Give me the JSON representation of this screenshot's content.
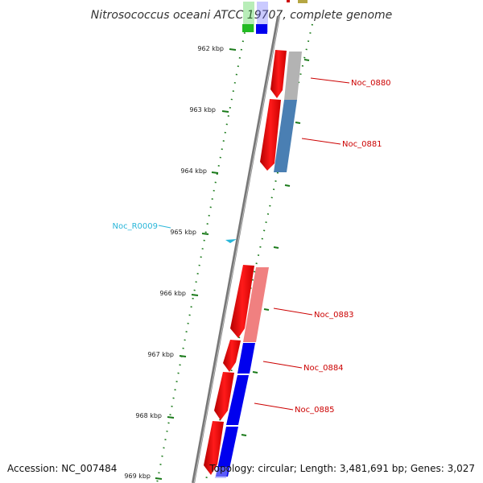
{
  "title": "Nitrosococcus oceani ATCC 19707, complete genome",
  "footer": {
    "accession": "Accession: NC_007484",
    "topology": "Topology: circular; Length: 3,481,691 bp; Genes: 3,027"
  },
  "ticks": [
    {
      "label": "962 kbp"
    },
    {
      "label": "963 kbp"
    },
    {
      "label": "964 kbp"
    },
    {
      "label": "965 kbp"
    },
    {
      "label": "966 kbp"
    },
    {
      "label": "967 kbp"
    },
    {
      "label": "968 kbp"
    },
    {
      "label": "969 kbp"
    }
  ],
  "genes": [
    {
      "label": "Noc_0880",
      "color": "#cc0000"
    },
    {
      "label": "Noc_0881",
      "color": "#cc0000"
    },
    {
      "label": "Noc_0883",
      "color": "#cc0000"
    },
    {
      "label": "Noc_0884",
      "color": "#cc0000"
    },
    {
      "label": "Noc_0885",
      "color": "#cc0000"
    },
    {
      "label": "Noc_R0009",
      "color": "#29b6d9"
    }
  ],
  "colors": {
    "backbone": "#808080",
    "tick": "#1a7a1a",
    "cds": "#ff0000",
    "protein": "#0000ff",
    "pseudo": "#f08080",
    "gray": "#b0b0b0",
    "steel": "#4682b4",
    "trna": "#29b6d9"
  }
}
